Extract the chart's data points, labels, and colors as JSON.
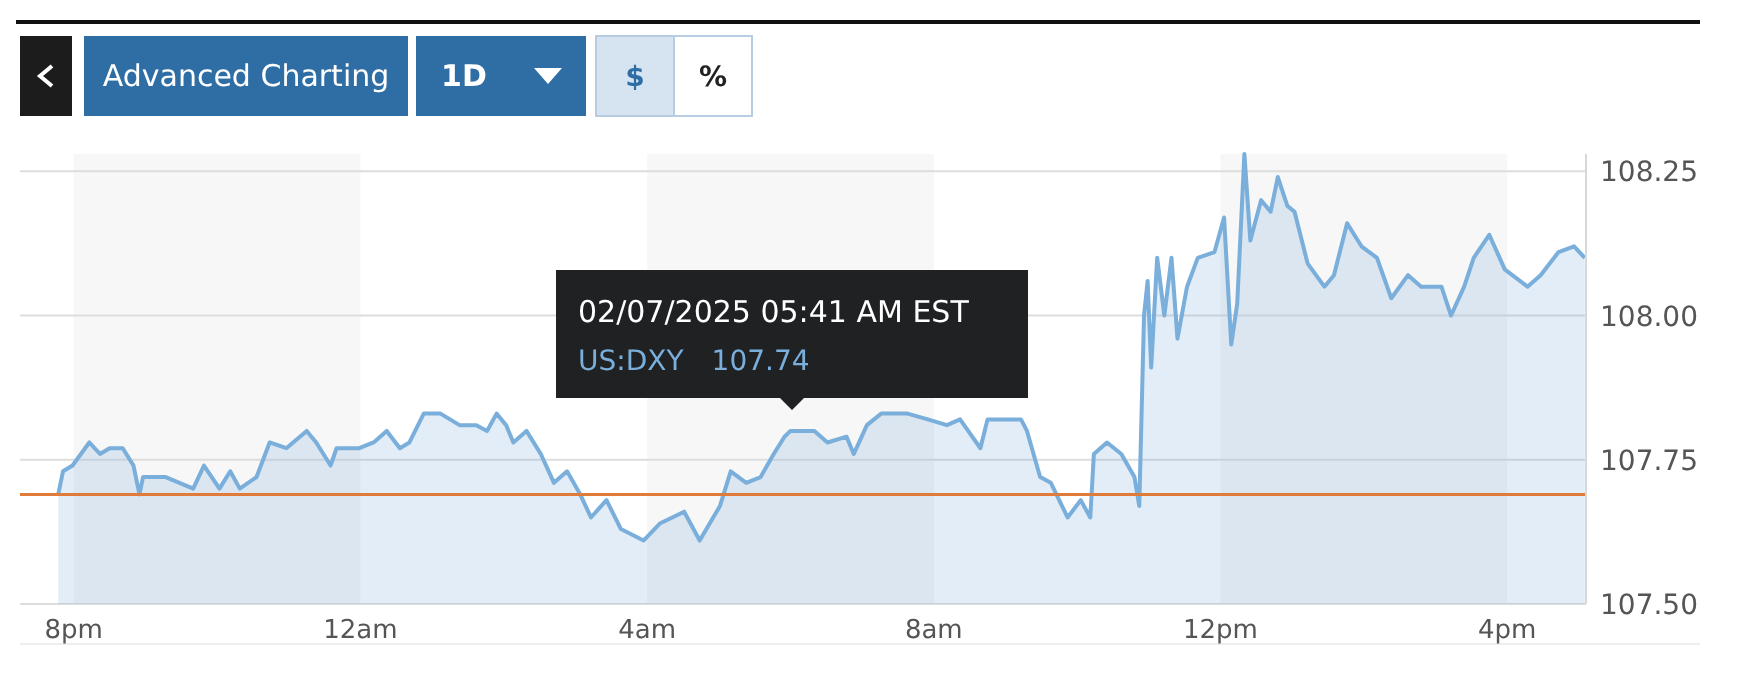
{
  "chart_data": {
    "type": "area",
    "x": [
      "2025-02-06T19:47",
      "2025-02-06T19:51",
      "2025-02-06T19:59",
      "2025-02-06T20:13",
      "2025-02-06T20:22",
      "2025-02-06T20:30",
      "2025-02-06T20:41",
      "2025-02-06T20:50",
      "2025-02-06T20:55",
      "2025-02-06T20:58",
      "2025-02-06T21:17",
      "2025-02-06T21:40",
      "2025-02-06T21:49",
      "2025-02-06T22:02",
      "2025-02-06T22:11",
      "2025-02-06T22:19",
      "2025-02-06T22:33",
      "2025-02-06T22:44",
      "2025-02-06T22:58",
      "2025-02-06T23:15",
      "2025-02-06T23:23",
      "2025-02-06T23:35",
      "2025-02-06T23:40",
      "2025-02-06T23:59",
      "2025-02-07T00:11",
      "2025-02-07T00:22",
      "2025-02-07T00:33",
      "2025-02-07T00:41",
      "2025-02-07T00:53",
      "2025-02-07T01:07",
      "2025-02-07T01:23",
      "2025-02-07T01:37",
      "2025-02-07T01:46",
      "2025-02-07T01:54",
      "2025-02-07T02:02",
      "2025-02-07T02:08",
      "2025-02-07T02:19",
      "2025-02-07T02:31",
      "2025-02-07T02:42",
      "2025-02-07T02:53",
      "2025-02-07T03:04",
      "2025-02-07T03:13",
      "2025-02-07T03:26",
      "2025-02-07T03:38",
      "2025-02-07T03:57",
      "2025-02-07T04:11",
      "2025-02-07T04:31",
      "2025-02-07T04:44",
      "2025-02-07T05:01",
      "2025-02-07T05:10",
      "2025-02-07T05:23",
      "2025-02-07T05:35",
      "2025-02-07T05:46",
      "2025-02-07T05:55",
      "2025-02-07T06:00",
      "2025-02-07T06:20",
      "2025-02-07T06:31",
      "2025-02-07T06:47",
      "2025-02-07T06:53",
      "2025-02-07T07:04",
      "2025-02-07T07:16",
      "2025-02-07T07:38",
      "2025-02-07T07:55",
      "2025-02-07T08:11",
      "2025-02-07T08:22",
      "2025-02-07T08:39",
      "2025-02-07T08:45",
      "2025-02-07T09:13",
      "2025-02-07T09:18",
      "2025-02-07T09:29",
      "2025-02-07T09:38",
      "2025-02-07T09:52",
      "2025-02-07T10:03",
      "2025-02-07T10:11",
      "2025-02-07T10:14",
      "2025-02-07T10:25",
      "2025-02-07T10:37",
      "2025-02-07T10:48",
      "2025-02-07T10:52",
      "2025-02-07T10:56",
      "2025-02-07T10:59",
      "2025-02-07T11:02",
      "2025-02-07T11:07",
      "2025-02-07T11:13",
      "2025-02-07T11:19",
      "2025-02-07T11:24",
      "2025-02-07T11:32",
      "2025-02-07T11:41",
      "2025-02-07T11:55",
      "2025-02-07T12:03",
      "2025-02-07T12:09",
      "2025-02-07T12:14",
      "2025-02-07T12:20",
      "2025-02-07T12:25",
      "2025-02-07T12:34",
      "2025-02-07T12:42",
      "2025-02-07T12:48",
      "2025-02-07T12:56",
      "2025-02-07T13:02",
      "2025-02-07T13:13",
      "2025-02-07T13:27",
      "2025-02-07T13:35",
      "2025-02-07T13:46",
      "2025-02-07T13:58",
      "2025-02-07T14:11",
      "2025-02-07T14:23",
      "2025-02-07T14:37",
      "2025-02-07T14:48",
      "2025-02-07T15:05",
      "2025-02-07T15:13",
      "2025-02-07T15:24",
      "2025-02-07T15:32",
      "2025-02-07T15:45",
      "2025-02-07T15:58",
      "2025-02-07T16:17",
      "2025-02-07T16:28",
      "2025-02-07T16:43",
      "2025-02-07T16:56",
      "2025-02-07T17:05"
    ],
    "series": [
      {
        "name": "US:DXY",
        "color": "#7aaedb",
        "values": [
          107.69,
          107.73,
          107.74,
          107.78,
          107.76,
          107.77,
          107.77,
          107.74,
          107.69,
          107.72,
          107.72,
          107.7,
          107.74,
          107.7,
          107.73,
          107.7,
          107.72,
          107.78,
          107.77,
          107.8,
          107.78,
          107.74,
          107.77,
          107.77,
          107.78,
          107.8,
          107.77,
          107.78,
          107.83,
          107.83,
          107.81,
          107.81,
          107.8,
          107.83,
          107.81,
          107.78,
          107.8,
          107.76,
          107.71,
          107.73,
          107.69,
          107.65,
          107.68,
          107.63,
          107.61,
          107.64,
          107.66,
          107.61,
          107.67,
          107.73,
          107.71,
          107.72,
          107.76,
          107.79,
          107.8,
          107.8,
          107.78,
          107.79,
          107.76,
          107.81,
          107.83,
          107.83,
          107.82,
          107.81,
          107.82,
          107.77,
          107.82,
          107.82,
          107.8,
          107.72,
          107.71,
          107.65,
          107.68,
          107.65,
          107.76,
          107.78,
          107.76,
          107.72,
          107.67,
          108.0,
          108.06,
          107.91,
          108.1,
          108.0,
          108.1,
          107.96,
          108.05,
          108.1,
          108.11,
          108.17,
          107.95,
          108.02,
          108.28,
          108.13,
          108.2,
          108.18,
          108.24,
          108.19,
          108.18,
          108.09,
          108.05,
          108.07,
          108.16,
          108.12,
          108.1,
          108.03,
          108.07,
          108.05,
          108.05,
          108.0,
          108.05,
          108.1,
          108.14,
          108.08,
          108.05,
          108.07,
          108.11,
          108.12,
          108.1
        ]
      }
    ],
    "xlim": [
      "2025-02-06T19:15",
      "2025-02-07T17:06"
    ],
    "ylim": [
      107.5,
      108.28
    ],
    "xticks": [
      {
        "value": "2025-02-06T20:00",
        "label": "8pm"
      },
      {
        "value": "2025-02-07T00:00",
        "label": "12am"
      },
      {
        "value": "2025-02-07T04:00",
        "label": "4am"
      },
      {
        "value": "2025-02-07T08:00",
        "label": "8am"
      },
      {
        "value": "2025-02-07T12:00",
        "label": "12pm"
      },
      {
        "value": "2025-02-07T16:00",
        "label": "4pm"
      }
    ],
    "yticks": [
      {
        "value": 107.5,
        "label": "107.50"
      },
      107.75,
      {
        "value": 108,
        "label": "108.00"
      },
      108.25
    ],
    "grid": "y",
    "ref_lines": [
      {
        "axis": "y",
        "value": 107.69,
        "color": "#e07b39"
      }
    ],
    "bands": [
      {
        "axis": "x",
        "from": "2025-02-06T20:00",
        "to": "2025-02-07T00:00",
        "color": "#f7f7f7"
      },
      {
        "axis": "x",
        "from": "2025-02-07T04:00",
        "to": "2025-02-07T08:00",
        "color": "#f7f7f7"
      },
      {
        "axis": "x",
        "from": "2025-02-07T12:00",
        "to": "2025-02-07T16:00",
        "color": "#f7f7f7"
      }
    ],
    "annotations": [
      "Advanced Charting",
      "1D",
      "$",
      "%",
      "107.74",
      "02/07/2025 05:41 AM EST"
    ]
  }
}
